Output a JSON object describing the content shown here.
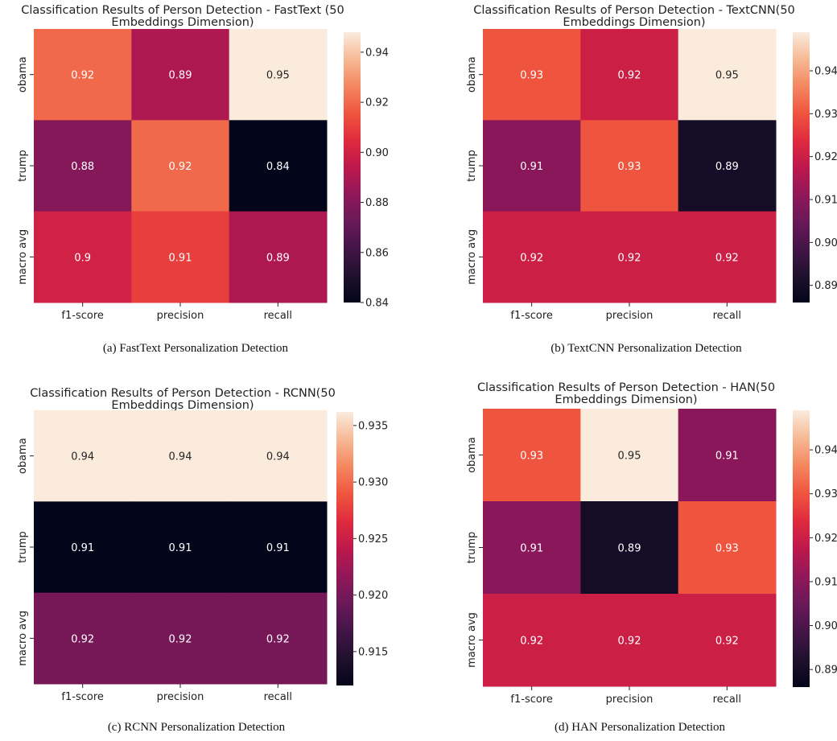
{
  "chart_data": [
    {
      "type": "heatmap",
      "title_lines": [
        "Classification Results of  Person Detection - FastText (50",
        "Embeddings Dimension)"
      ],
      "caption": "(a) FastText Personalization Detection",
      "rows": [
        "obama",
        "trump",
        "macro avg"
      ],
      "columns": [
        "f1-score",
        "precision",
        "recall"
      ],
      "values": [
        [
          0.92,
          0.89,
          0.95
        ],
        [
          0.88,
          0.92,
          0.84
        ],
        [
          0.9,
          0.91,
          0.89
        ]
      ],
      "colorbar": {
        "vmin": 0.84,
        "vmax": 0.948,
        "ticks": [
          "0.84",
          "0.86",
          "0.88",
          "0.90",
          "0.92",
          "0.94"
        ]
      }
    },
    {
      "type": "heatmap",
      "title_lines": [
        "Classification Results of  Person Detection - TextCNN(50",
        "Embeddings Dimension)"
      ],
      "caption": "(b) TextCNN Personalization Detection",
      "rows": [
        "obama",
        "trump",
        "macro avg"
      ],
      "columns": [
        "f1-score",
        "precision",
        "recall"
      ],
      "values": [
        [
          0.93,
          0.92,
          0.95
        ],
        [
          0.91,
          0.93,
          0.89
        ],
        [
          0.92,
          0.92,
          0.92
        ]
      ],
      "colorbar": {
        "vmin": 0.886,
        "vmax": 0.949,
        "ticks": [
          "0.89",
          "0.90",
          "0.91",
          "0.92",
          "0.93",
          "0.94"
        ]
      }
    },
    {
      "type": "heatmap",
      "title_lines": [
        "Classification Results of  Person Detection - RCNN(50",
        "Embeddings Dimension)"
      ],
      "caption": "(c) RCNN Personalization Detection",
      "rows": [
        "obama",
        "trump",
        "macro avg"
      ],
      "columns": [
        "f1-score",
        "precision",
        "recall"
      ],
      "values": [
        [
          0.94,
          0.94,
          0.94
        ],
        [
          0.91,
          0.91,
          0.91
        ],
        [
          0.92,
          0.92,
          0.92
        ]
      ],
      "colorbar": {
        "vmin": 0.912,
        "vmax": 0.9362,
        "ticks": [
          "0.915",
          "0.920",
          "0.925",
          "0.930",
          "0.935"
        ]
      }
    },
    {
      "type": "heatmap",
      "title_lines": [
        "Classification Results of  Person Detection - HAN(50",
        "Embeddings Dimension)"
      ],
      "caption": "(d) HAN Personalization Detection",
      "rows": [
        "obama",
        "trump",
        "macro avg"
      ],
      "columns": [
        "f1-score",
        "precision",
        "recall"
      ],
      "values": [
        [
          0.93,
          0.95,
          0.91
        ],
        [
          0.91,
          0.89,
          0.93
        ],
        [
          0.92,
          0.92,
          0.92
        ]
      ],
      "colorbar": {
        "vmin": 0.886,
        "vmax": 0.949,
        "ticks": [
          "0.89",
          "0.90",
          "0.91",
          "0.92",
          "0.93",
          "0.94"
        ]
      }
    }
  ]
}
